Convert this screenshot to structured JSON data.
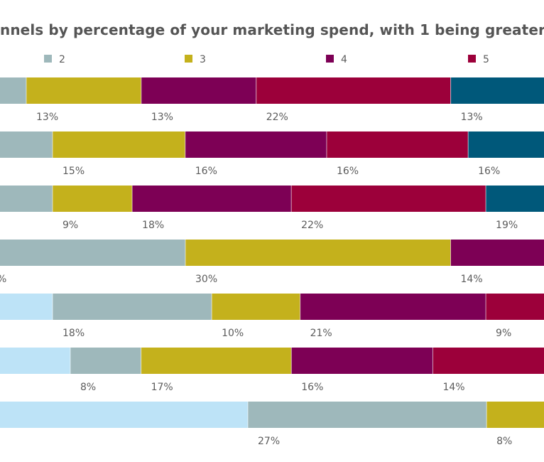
{
  "chart_data": {
    "type": "bar",
    "orientation": "horizontal",
    "stacked": true,
    "title": "nnels by percentage of your marketing spend, with 1 being greater",
    "legend": [
      {
        "name": "2",
        "color": "#9eb8bb"
      },
      {
        "name": "3",
        "color": "#c4b11c"
      },
      {
        "name": "4",
        "color": "#7d0055"
      },
      {
        "name": "5",
        "color": "#9c003a"
      }
    ],
    "legend_position": "top",
    "rows": [
      {
        "segments": [
          {
            "rank": "2",
            "color": "#9eb8bb",
            "value": null,
            "label": ""
          },
          {
            "rank": "3",
            "color": "#c4b11c",
            "value": 13,
            "label": "13%"
          },
          {
            "rank": "4",
            "color": "#7d0055",
            "value": 13,
            "label": "13%"
          },
          {
            "rank": "5",
            "color": "#9c003a",
            "value": 22,
            "label": "22%"
          },
          {
            "rank": "6",
            "color": "#00587a",
            "value": 13,
            "label": "13%"
          }
        ]
      },
      {
        "segments": [
          {
            "rank": "2",
            "color": "#9eb8bb",
            "value": null,
            "label": ""
          },
          {
            "rank": "3",
            "color": "#c4b11c",
            "value": 15,
            "label": "15%"
          },
          {
            "rank": "4",
            "color": "#7d0055",
            "value": 16,
            "label": "16%"
          },
          {
            "rank": "5",
            "color": "#9c003a",
            "value": 16,
            "label": "16%"
          },
          {
            "rank": "6",
            "color": "#00587a",
            "value": 16,
            "label": "16%"
          }
        ]
      },
      {
        "segments": [
          {
            "rank": "2",
            "color": "#9eb8bb",
            "value": null,
            "label": ""
          },
          {
            "rank": "3",
            "color": "#c4b11c",
            "value": 9,
            "label": "9%"
          },
          {
            "rank": "4",
            "color": "#7d0055",
            "value": 18,
            "label": "18%"
          },
          {
            "rank": "5",
            "color": "#9c003a",
            "value": 22,
            "label": "22%"
          },
          {
            "rank": "6",
            "color": "#00587a",
            "value": 19,
            "label": "19%"
          }
        ]
      },
      {
        "segments": [
          {
            "rank": "2",
            "color": "#9eb8bb",
            "value": null,
            "label": "%"
          },
          {
            "rank": "3",
            "color": "#c4b11c",
            "value": 30,
            "label": "30%"
          },
          {
            "rank": "4",
            "color": "#7d0055",
            "value": 14,
            "label": "14%"
          }
        ]
      },
      {
        "segments": [
          {
            "rank": "1",
            "color": "#bde3f7",
            "value": null,
            "label": ""
          },
          {
            "rank": "2",
            "color": "#9eb8bb",
            "value": 18,
            "label": "18%"
          },
          {
            "rank": "3",
            "color": "#c4b11c",
            "value": 10,
            "label": "10%"
          },
          {
            "rank": "4",
            "color": "#7d0055",
            "value": 21,
            "label": "21%"
          },
          {
            "rank": "5",
            "color": "#9c003a",
            "value": 9,
            "label": "9%"
          }
        ]
      },
      {
        "segments": [
          {
            "rank": "1",
            "color": "#bde3f7",
            "value": null,
            "label": ""
          },
          {
            "rank": "2",
            "color": "#9eb8bb",
            "value": 8,
            "label": "8%"
          },
          {
            "rank": "3",
            "color": "#c4b11c",
            "value": 17,
            "label": "17%"
          },
          {
            "rank": "4",
            "color": "#7d0055",
            "value": 16,
            "label": "16%"
          },
          {
            "rank": "5",
            "color": "#9c003a",
            "value": 14,
            "label": "14%"
          }
        ]
      },
      {
        "segments": [
          {
            "rank": "1",
            "color": "#bde3f7",
            "value": null,
            "label": ""
          },
          {
            "rank": "2",
            "color": "#9eb8bb",
            "value": 27,
            "label": "27%"
          },
          {
            "rank": "3",
            "color": "#c4b11c",
            "value": 8,
            "label": "8%"
          }
        ]
      }
    ]
  }
}
